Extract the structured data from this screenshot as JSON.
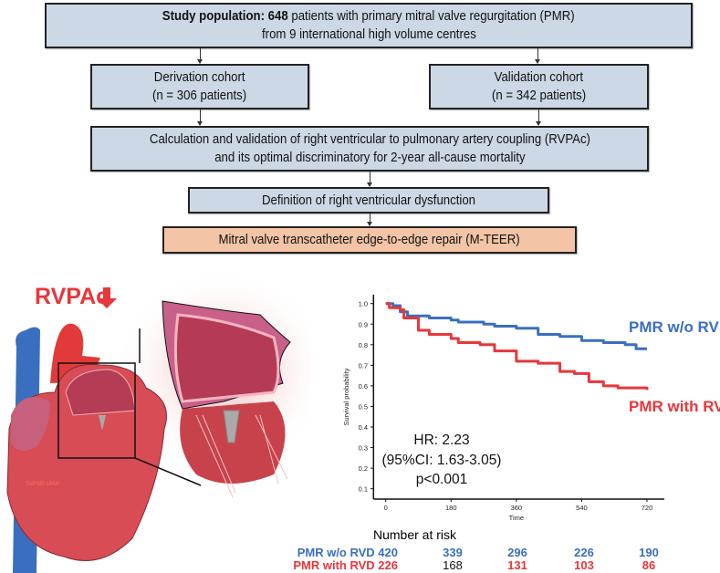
{
  "flowchart": {
    "study_population": {
      "bold_prefix": "Study population: 648",
      "line1_rest": " patients with primary mitral valve regurgitation (PMR)",
      "line2": "from 9 international high volume centres"
    },
    "derivation": {
      "line1": "Derivation cohort",
      "line2": "(n = 306 patients)"
    },
    "validation": {
      "line1": "Validation cohort",
      "line2": "(n = 342 patients)"
    },
    "calculation": {
      "line1": "Calculation and validation of right ventricular to pulmonary artery coupling (RVPAc)",
      "line2": "and its optimal discriminatory for 2-year all-cause mortality"
    },
    "definition": "Definition of right ventricular dysfunction",
    "mteer": "Mitral valve transcatheter edge-to-edge repair (M-TEER)"
  },
  "illustration": {
    "rvpac_label": "RVPAc",
    "heart_label": "TAPSE/ sPAP"
  },
  "colors": {
    "blue": "#3a6fbf",
    "red": "#e8363a",
    "box": "#cdd8e6",
    "box_orange": "#f3c4a6"
  },
  "chart_data": {
    "type": "line",
    "xlabel": "Time",
    "ylabel": "Survival probability",
    "xticks": [
      "0",
      "180",
      "360",
      "540",
      "720"
    ],
    "yticks": [
      "0.1",
      "0.2",
      "0.3",
      "0.4",
      "0.5",
      "0.6",
      "0.7",
      "0.8",
      "0.9",
      "1.0"
    ],
    "xlim": [
      0,
      720
    ],
    "ylim": [
      0.05,
      1.03
    ],
    "series": [
      {
        "name": "PMR w/o RVD",
        "color": "#3a6fbf",
        "x": [
          0,
          20,
          40,
          60,
          120,
          180,
          200,
          270,
          300,
          360,
          420,
          480,
          540,
          600,
          660,
          690,
          720
        ],
        "y": [
          1.0,
          0.99,
          0.96,
          0.94,
          0.93,
          0.92,
          0.91,
          0.9,
          0.89,
          0.88,
          0.85,
          0.84,
          0.82,
          0.81,
          0.8,
          0.78,
          0.78
        ]
      },
      {
        "name": "PMR with RVD",
        "color": "#e8363a",
        "x": [
          0,
          10,
          40,
          50,
          90,
          120,
          180,
          200,
          260,
          300,
          360,
          420,
          480,
          520,
          560,
          600,
          640,
          720
        ],
        "y": [
          1.0,
          0.98,
          0.97,
          0.93,
          0.87,
          0.85,
          0.83,
          0.81,
          0.8,
          0.77,
          0.72,
          0.71,
          0.67,
          0.66,
          0.62,
          0.6,
          0.59,
          0.58
        ]
      }
    ],
    "annotation": {
      "hr": "HR: 2.23",
      "ci": "(95%CI: 1.63-3.05)",
      "p": "p<0.001"
    },
    "risk_table": {
      "title": "Number at risk",
      "rows": [
        {
          "label": "PMR w/o RVD",
          "values": [
            "420",
            "339",
            "296",
            "226",
            "190"
          ]
        },
        {
          "label": "PMR with RVD",
          "values": [
            "226",
            "168",
            "131",
            "103",
            "86"
          ]
        }
      ]
    }
  }
}
